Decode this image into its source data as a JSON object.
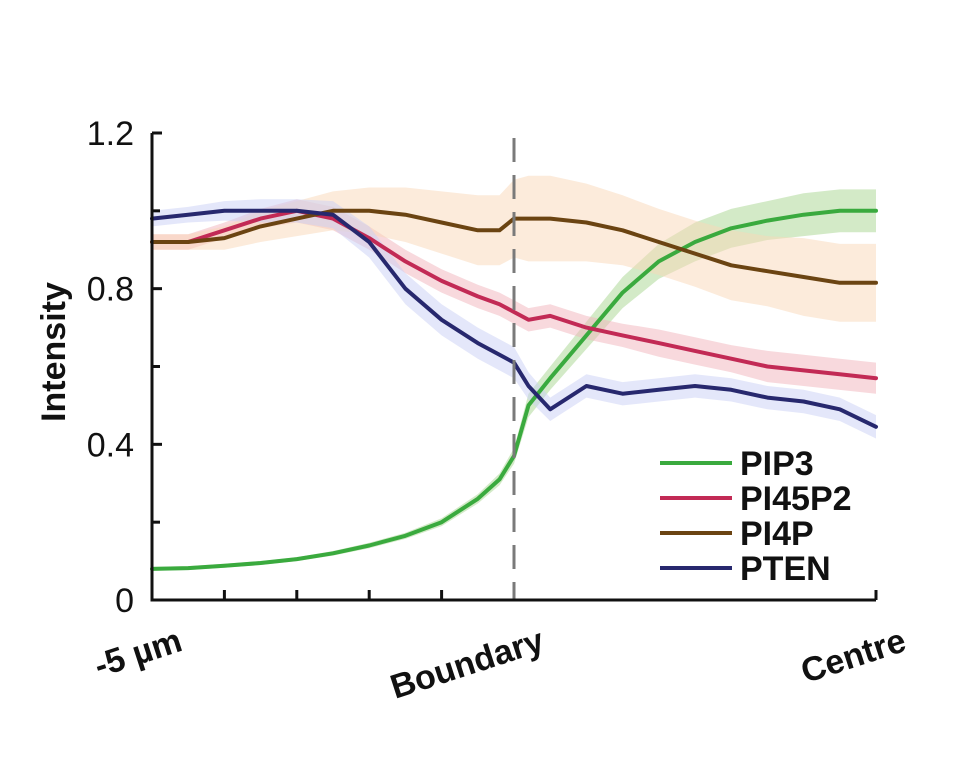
{
  "chart_data": {
    "type": "line",
    "ylabel": "Intensity",
    "xlabel": "",
    "ylim": [
      0,
      1.2
    ],
    "xlim": [
      0,
      1
    ],
    "y_ticks": [
      {
        "value": 0,
        "label": "0"
      },
      {
        "value": 0.4,
        "label": "0.4"
      },
      {
        "value": 0.8,
        "label": "0.8"
      },
      {
        "value": 1.2,
        "label": "1.2"
      }
    ],
    "y_minor_ticks": [
      0.2,
      0.6,
      1.0
    ],
    "x_minor_ticks": [
      0.1,
      0.2,
      0.3,
      0.4
    ],
    "x_category_labels": [
      {
        "x": 0,
        "label": "-5 µm"
      },
      {
        "x": 0.5,
        "label": "Boundary"
      },
      {
        "x": 1,
        "label": "Centre"
      }
    ],
    "boundary_line_x": 0.5,
    "legend_position": "lower-right",
    "grid": false,
    "x": [
      0,
      0.05,
      0.1,
      0.15,
      0.2,
      0.25,
      0.3,
      0.35,
      0.4,
      0.45,
      0.48,
      0.5,
      0.52,
      0.55,
      0.6,
      0.65,
      0.7,
      0.75,
      0.8,
      0.85,
      0.9,
      0.95,
      1.0
    ],
    "series": [
      {
        "name": "PIP3",
        "color": "#3aaa3e",
        "band_color": "#a8d68f",
        "values": [
          0.08,
          0.082,
          0.088,
          0.095,
          0.105,
          0.12,
          0.14,
          0.165,
          0.2,
          0.26,
          0.31,
          0.37,
          0.5,
          0.57,
          0.68,
          0.79,
          0.87,
          0.92,
          0.955,
          0.975,
          0.99,
          1.0,
          1.0
        ],
        "errors": [
          0.005,
          0.005,
          0.005,
          0.005,
          0.005,
          0.006,
          0.007,
          0.008,
          0.01,
          0.012,
          0.015,
          0.02,
          0.03,
          0.03,
          0.035,
          0.04,
          0.045,
          0.05,
          0.05,
          0.05,
          0.055,
          0.055,
          0.055
        ]
      },
      {
        "name": "PI45P2",
        "color": "#c22a55",
        "band_color": "#f2b4bb",
        "values": [
          0.92,
          0.92,
          0.95,
          0.98,
          1.0,
          0.98,
          0.93,
          0.87,
          0.82,
          0.78,
          0.76,
          0.74,
          0.72,
          0.73,
          0.7,
          0.68,
          0.66,
          0.64,
          0.62,
          0.6,
          0.59,
          0.58,
          0.57
        ],
        "errors": [
          0.02,
          0.02,
          0.02,
          0.025,
          0.03,
          0.03,
          0.03,
          0.03,
          0.03,
          0.03,
          0.03,
          0.03,
          0.03,
          0.03,
          0.03,
          0.03,
          0.035,
          0.035,
          0.035,
          0.04,
          0.04,
          0.04,
          0.04
        ]
      },
      {
        "name": "PI4P",
        "color": "#6b4412",
        "band_color": "#fad8b8",
        "values": [
          0.92,
          0.92,
          0.93,
          0.96,
          0.98,
          1.0,
          1.0,
          0.99,
          0.97,
          0.95,
          0.95,
          0.98,
          0.98,
          0.98,
          0.97,
          0.95,
          0.92,
          0.89,
          0.86,
          0.845,
          0.83,
          0.815,
          0.815
        ],
        "errors": [
          0.02,
          0.02,
          0.03,
          0.04,
          0.045,
          0.05,
          0.06,
          0.07,
          0.08,
          0.09,
          0.09,
          0.1,
          0.11,
          0.11,
          0.1,
          0.09,
          0.085,
          0.085,
          0.09,
          0.09,
          0.1,
          0.1,
          0.1
        ]
      },
      {
        "name": "PTEN",
        "color": "#27286e",
        "band_color": "#c9cff5",
        "values": [
          0.98,
          0.99,
          1.0,
          1.0,
          1.0,
          0.99,
          0.92,
          0.8,
          0.72,
          0.66,
          0.63,
          0.61,
          0.55,
          0.49,
          0.55,
          0.53,
          0.54,
          0.55,
          0.54,
          0.52,
          0.51,
          0.49,
          0.445
        ],
        "errors": [
          0.02,
          0.02,
          0.025,
          0.03,
          0.03,
          0.035,
          0.04,
          0.04,
          0.04,
          0.04,
          0.04,
          0.04,
          0.035,
          0.03,
          0.03,
          0.03,
          0.03,
          0.03,
          0.03,
          0.03,
          0.03,
          0.03,
          0.03
        ]
      }
    ]
  }
}
